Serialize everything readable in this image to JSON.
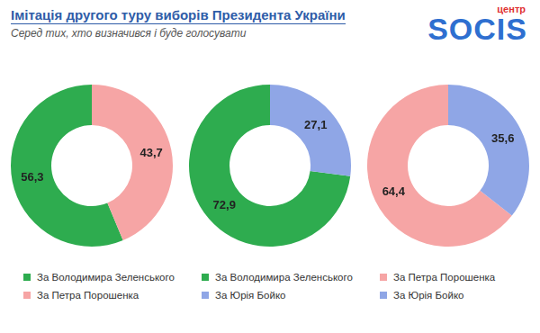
{
  "header": {
    "title": "Імітація другого туру виборів Президента України",
    "subtitle": "Серед тих, хто визначився  і буде голосувати",
    "logo": "SOCIS",
    "logo_sup": "центр"
  },
  "chart_data": [
    {
      "type": "doughnut",
      "categories": [
        "За Володимира Зеленського",
        "За Петра Порошенка"
      ],
      "values": [
        56.3,
        43.7
      ],
      "value_labels": [
        "56,3",
        "43,7"
      ],
      "colors": [
        "#2eac4f",
        "#f6a5a5"
      ],
      "data_labels": true,
      "legend": "bottom"
    },
    {
      "type": "doughnut",
      "categories": [
        "За Володимира Зеленського",
        "За Юрія Бойко"
      ],
      "values": [
        72.9,
        27.1
      ],
      "value_labels": [
        "72,9",
        "27,1"
      ],
      "colors": [
        "#2eac4f",
        "#8fa6e6"
      ],
      "data_labels": true,
      "legend": "bottom"
    },
    {
      "type": "doughnut",
      "categories": [
        "За Петра Порошенка",
        "За Юрія Бойко"
      ],
      "values": [
        64.4,
        35.6
      ],
      "value_labels": [
        "64,4",
        "35,6"
      ],
      "colors": [
        "#f6a5a5",
        "#8fa6e6"
      ],
      "data_labels": true,
      "legend": "bottom"
    }
  ]
}
